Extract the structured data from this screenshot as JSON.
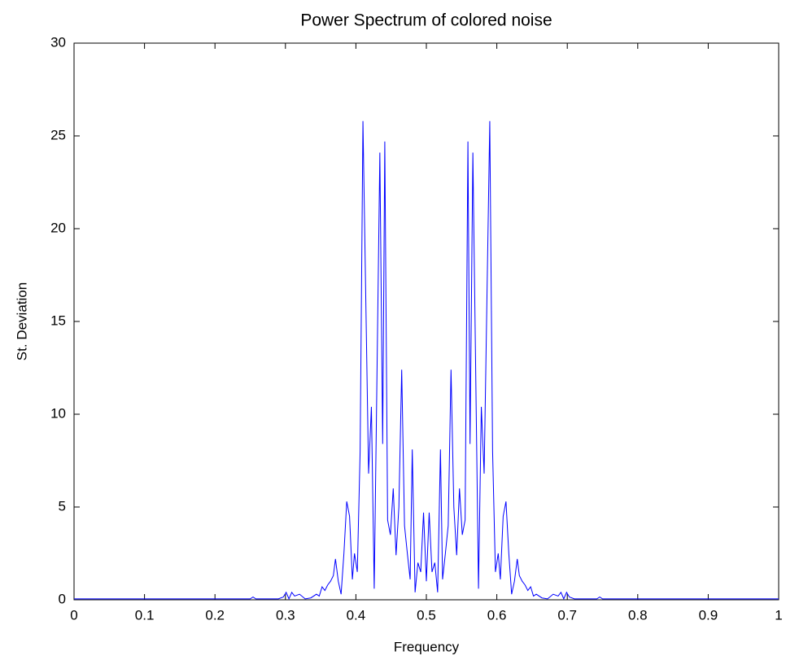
{
  "chart_data": {
    "type": "line",
    "title": "Power Spectrum of colored noise",
    "x_label": "Frequency",
    "y_label": "St. Deviation",
    "color": "#0000ff",
    "x": [
      0,
      0.25,
      0.254,
      0.258,
      0.29,
      0.297,
      0.301,
      0.305,
      0.309,
      0.313,
      0.32,
      0.328,
      0.336,
      0.344,
      0.348,
      0.352,
      0.356,
      0.36,
      0.364,
      0.368,
      0.371,
      0.375,
      0.379,
      0.383,
      0.387,
      0.391,
      0.395,
      0.398,
      0.402,
      0.406,
      0.41,
      0.418,
      0.422,
      0.426,
      0.434,
      0.438,
      0.441,
      0.445,
      0.449,
      0.453,
      0.457,
      0.461,
      0.465,
      0.469,
      0.473,
      0.477,
      0.48,
      0.484,
      0.488,
      0.492,
      0.496,
      0.5,
      0.504,
      0.508,
      0.512,
      0.516,
      0.52,
      0.523,
      0.527,
      0.531,
      0.535,
      0.539,
      0.543,
      0.547,
      0.551,
      0.555,
      0.559,
      0.562,
      0.566,
      0.574,
      0.578,
      0.582,
      0.59,
      0.594,
      0.598,
      0.602,
      0.605,
      0.609,
      0.613,
      0.617,
      0.621,
      0.625,
      0.629,
      0.632,
      0.636,
      0.64,
      0.644,
      0.648,
      0.652,
      0.656,
      0.664,
      0.672,
      0.68,
      0.687,
      0.691,
      0.695,
      0.699,
      0.703,
      0.71,
      0.742,
      0.746,
      0.75,
      1
    ],
    "values": [
      0.05,
      0.05,
      0.15,
      0.05,
      0.05,
      0.15,
      0.4,
      0.05,
      0.4,
      0.2,
      0.3,
      0.05,
      0.1,
      0.3,
      0.2,
      0.7,
      0.5,
      0.8,
      1.0,
      1.3,
      2.2,
      1.0,
      0.3,
      2.5,
      5.3,
      4.5,
      1.1,
      2.5,
      1.5,
      8.0,
      25.8,
      6.8,
      10.4,
      0.6,
      24.1,
      8.4,
      24.7,
      4.3,
      3.5,
      6.0,
      2.4,
      5.0,
      12.4,
      4.0,
      2.5,
      1.1,
      8.1,
      0.4,
      2.0,
      1.5,
      4.7,
      1.0,
      4.7,
      1.5,
      2.0,
      0.4,
      8.1,
      1.1,
      2.5,
      4.0,
      12.4,
      5.0,
      2.4,
      6.0,
      3.5,
      4.3,
      24.7,
      8.4,
      24.1,
      0.6,
      10.4,
      6.8,
      25.8,
      8.0,
      1.5,
      2.5,
      1.1,
      4.5,
      5.3,
      2.5,
      0.3,
      1.0,
      2.2,
      1.3,
      1.0,
      0.8,
      0.5,
      0.7,
      0.2,
      0.3,
      0.1,
      0.05,
      0.3,
      0.2,
      0.4,
      0.05,
      0.4,
      0.15,
      0.05,
      0.05,
      0.15,
      0.05,
      0.05
    ],
    "xlim": [
      0,
      1
    ],
    "xticks": [
      0,
      0.1,
      0.2,
      0.3,
      0.4,
      0.5,
      0.6,
      0.7,
      0.8,
      0.9,
      1
    ],
    "ylim": [
      0,
      30
    ],
    "yticks": [
      0,
      5,
      10,
      15,
      20,
      25,
      30
    ],
    "grid": false
  }
}
